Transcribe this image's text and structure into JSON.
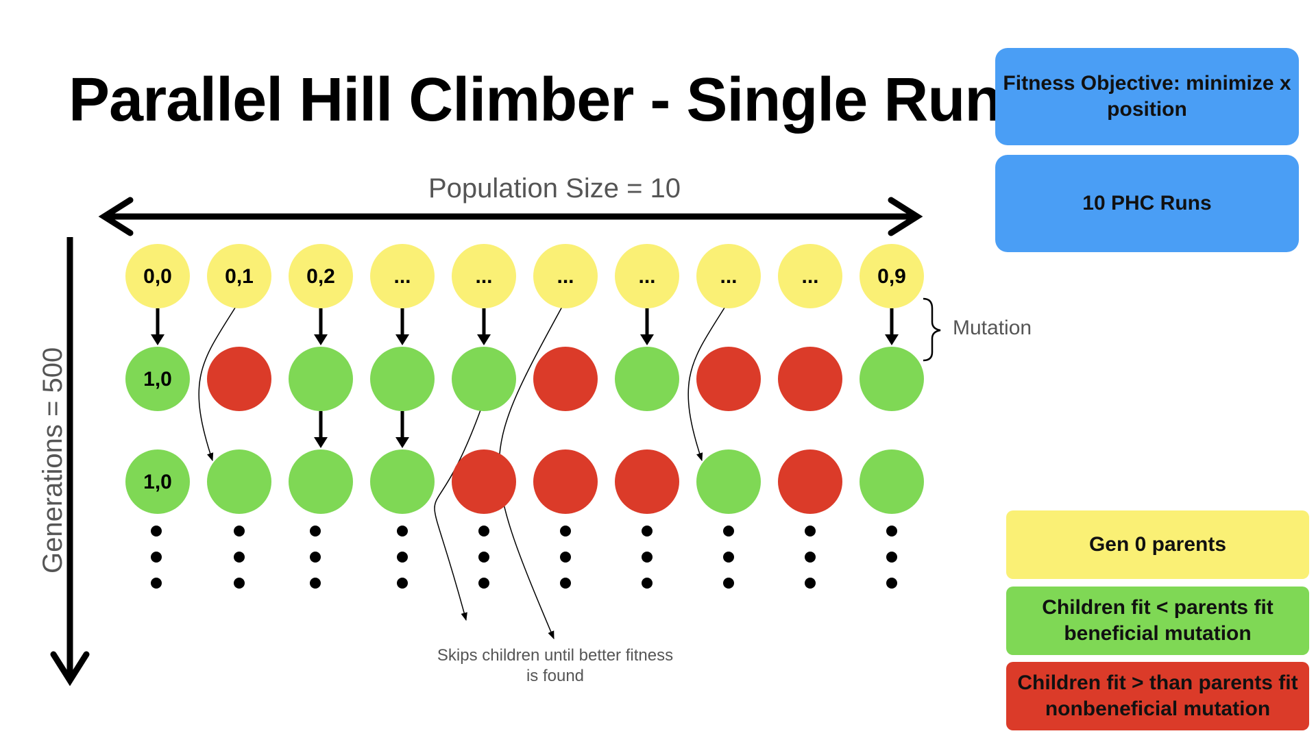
{
  "title": "Parallel Hill Climber - Single Run",
  "population_label": "Population Size = 10",
  "generations_label": "Generations = 500",
  "mutation_label": "Mutation",
  "skip_note": "Skips children until better fitness is found",
  "info_boxes": {
    "fitness": "Fitness Objective: minimize x position",
    "runs": "10 PHC Runs"
  },
  "legend": {
    "yellow": "Gen 0 parents",
    "green": "Children fit < parents fit beneficial mutation",
    "red": "Children fit > than parents fit nonbeneficial mutation"
  },
  "colors": {
    "yellow": "#faf075",
    "green": "#7fd855",
    "red": "#db3b29",
    "blue": "#4a9ef5"
  },
  "rows": [
    {
      "state": [
        "yellow",
        "yellow",
        "yellow",
        "yellow",
        "yellow",
        "yellow",
        "yellow",
        "yellow",
        "yellow",
        "yellow"
      ],
      "labels": [
        "0,0",
        "0,1",
        "0,2",
        "...",
        "...",
        "...",
        "...",
        "...",
        "...",
        "0,9"
      ]
    },
    {
      "state": [
        "green",
        "red",
        "green",
        "green",
        "green",
        "red",
        "green",
        "red",
        "red",
        "green"
      ],
      "labels": [
        "1,0",
        "",
        "",
        "",
        "",
        "",
        "",
        "",
        "",
        ""
      ]
    },
    {
      "state": [
        "green",
        "green",
        "green",
        "green",
        "red",
        "red",
        "red",
        "green",
        "red",
        "green"
      ],
      "labels": [
        "1,0",
        "",
        "",
        "",
        "",
        "",
        "",
        "",
        "",
        ""
      ]
    }
  ],
  "straight_arrows": [
    {
      "col": 0,
      "from_row": 0
    },
    {
      "col": 2,
      "from_row": 0
    },
    {
      "col": 3,
      "from_row": 0
    },
    {
      "col": 4,
      "from_row": 0
    },
    {
      "col": 6,
      "from_row": 0
    },
    {
      "col": 9,
      "from_row": 0
    },
    {
      "col": 2,
      "from_row": 1
    },
    {
      "col": 3,
      "from_row": 1
    }
  ],
  "skip_arrows": [
    {
      "from_col": 1,
      "from_row": 0,
      "to_col": 1,
      "to_row": 2
    },
    {
      "from_col": 7,
      "from_row": 0,
      "to_col": 7,
      "to_row": 2
    },
    {
      "from_col": 4,
      "from_row": 1,
      "to_note": true
    },
    {
      "from_col": 5,
      "from_row": 0,
      "to_note": true
    }
  ]
}
